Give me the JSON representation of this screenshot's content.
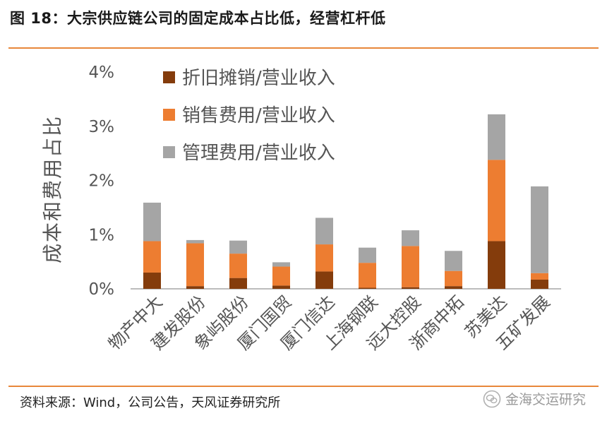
{
  "title": "图 18：大宗供应链公司的固定成本占比低，经营杠杆低",
  "source": "资料来源：Wind，公司公告，天风证券研究所",
  "watermark": "金海交运研究",
  "colors": {
    "accent_rule": "#e8873a",
    "depreciation": "#843c0c",
    "selling": "#ed7d31",
    "admin": "#a5a5a5",
    "axis": "#a6a6a6",
    "text": "#555555"
  },
  "chart_data": {
    "type": "bar",
    "stacked": true,
    "ylabel": "成本和费用占比",
    "xlabel": "",
    "ylim": [
      0,
      4
    ],
    "yticks": [
      "0%",
      "1%",
      "2%",
      "3%",
      "4%"
    ],
    "grid": false,
    "legend_position": "top-left",
    "categories": [
      "物产中大",
      "建发股份",
      "象屿股份",
      "厦门国贸",
      "厦门信达",
      "上海钢联",
      "远大控股",
      "浙商中拓",
      "苏美达",
      "五矿发展"
    ],
    "series": [
      {
        "name": "折旧摊销/营业收入",
        "color": "#843c0c",
        "values": [
          0.3,
          0.05,
          0.2,
          0.06,
          0.32,
          0.02,
          0.03,
          0.05,
          0.88,
          0.17
        ]
      },
      {
        "name": "销售费用/营业收入",
        "color": "#ed7d31",
        "values": [
          0.58,
          0.79,
          0.45,
          0.35,
          0.5,
          0.46,
          0.76,
          0.28,
          1.5,
          0.12
        ]
      },
      {
        "name": "管理费用/营业收入",
        "color": "#a5a5a5",
        "values": [
          0.71,
          0.06,
          0.24,
          0.08,
          0.49,
          0.28,
          0.29,
          0.37,
          0.84,
          1.6
        ]
      }
    ]
  }
}
